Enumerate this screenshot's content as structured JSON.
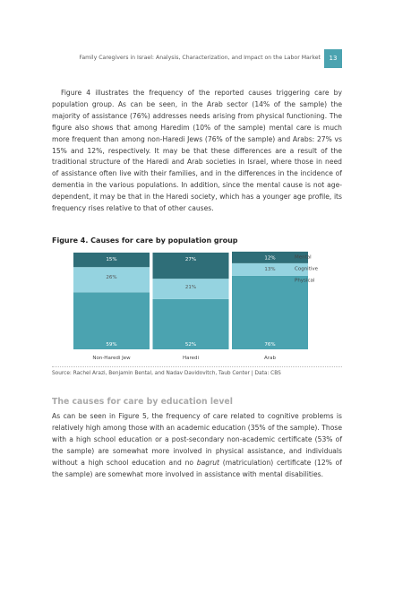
{
  "header": {
    "running_title": "Family Caregivers in Israel: Analysis, Characterization, and Impact on the Labor Market",
    "page_number": "13"
  },
  "intro_paragraph": "Figure 4 illustrates the frequency of the reported causes triggering care by population group. As can be seen, in the Arab sector (14% of the sample) the majority of assistance (76%) addresses needs arising from physical functioning. The figure also shows that among Haredim (10% of the sample) mental care is much more frequent than among non-Haredi Jews (76% of the sample) and Arabs: 27% vs 15% and 12%, respectively. It may be that these differences are a result of the traditional structure of the Haredi and Arab societies in Israel, where those in need of assistance often live with their families, and in the differences in the incidence of dementia in the various populations. In addition, since the mental cause is not age-dependent, it may be that in the Haredi society, which has a younger age profile, its frequency rises relative to that of other causes.",
  "figure": {
    "title": "Figure 4. Causes for care by population group",
    "source": "Source: Rachel Arazi, Benjamin Bental, and Nadav Davidovitch, Taub Center | Data: CBS"
  },
  "chart_data": {
    "type": "bar",
    "stacked": true,
    "categories": [
      "Non-Haredi Jew",
      "Haredi",
      "Arab"
    ],
    "series": [
      {
        "name": "Physical",
        "values": [
          59,
          52,
          76
        ],
        "labels": [
          "59%",
          "52%",
          "76%"
        ],
        "color": "#4ba3b0"
      },
      {
        "name": "Cognitive",
        "values": [
          26,
          21,
          13
        ],
        "labels": [
          "26%",
          "21%",
          "13%"
        ],
        "color": "#95d3e0"
      },
      {
        "name": "Mental",
        "values": [
          15,
          27,
          12
        ],
        "labels": [
          "15%",
          "27%",
          "12%"
        ],
        "color": "#2f6e78"
      }
    ],
    "legend_order": [
      "Mental",
      "Cognitive",
      "Physical"
    ],
    "legend_position": "right",
    "ylim": [
      0,
      100
    ],
    "grid": false
  },
  "education_section": {
    "title": "The causes for care by education level",
    "paragraph_before_italic": "As can be seen in Figure 5, the frequency of care related to cognitive problems is relatively high among those with an academic education (35% of the sample). Those with a high school education or a post-secondary non-academic certificate (53% of the sample) are somewhat more involved in physical assistance, and individuals without a high school education and no ",
    "italic_word": "bagrut",
    "paragraph_after_italic": " (matriculation) certificate (12% of the sample) are somewhat more involved in assistance with mental disabilities."
  }
}
